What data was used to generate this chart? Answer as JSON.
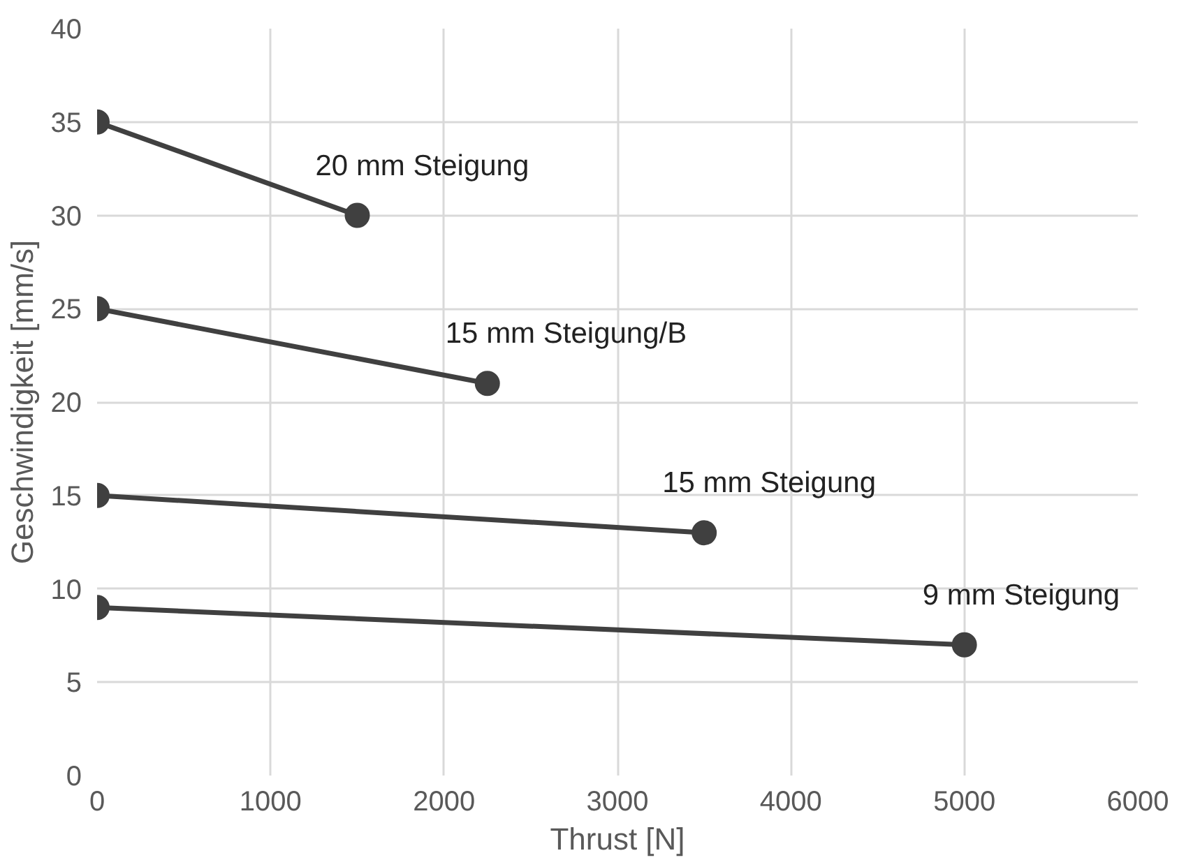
{
  "chart_data": {
    "type": "line",
    "xlabel": "Thrust [N]",
    "ylabel": "Geschwindigkeit [mm/s]",
    "series": [
      {
        "name": "20 mm Steigung",
        "color": "#404040",
        "x": [
          0,
          1500
        ],
        "values": [
          35,
          30
        ]
      },
      {
        "name": "15 mm Steigung/B",
        "color": "#404040",
        "x": [
          0,
          2250
        ],
        "values": [
          25,
          21
        ]
      },
      {
        "name": "15 mm Steigung",
        "color": "#404040",
        "x": [
          0,
          3500
        ],
        "values": [
          15,
          13
        ]
      },
      {
        "name": "9 mm Steigung",
        "color": "#404040",
        "x": [
          0,
          5000
        ],
        "values": [
          9,
          7
        ]
      }
    ],
    "xlim": [
      0,
      6000
    ],
    "xticks": [
      0,
      1000,
      2000,
      3000,
      4000,
      5000,
      6000
    ],
    "ylim": [
      0,
      40
    ],
    "yticks": [
      0,
      5,
      10,
      15,
      20,
      25,
      30,
      35,
      40
    ],
    "grid": true,
    "marker": "circle",
    "line_style": "solid"
  }
}
